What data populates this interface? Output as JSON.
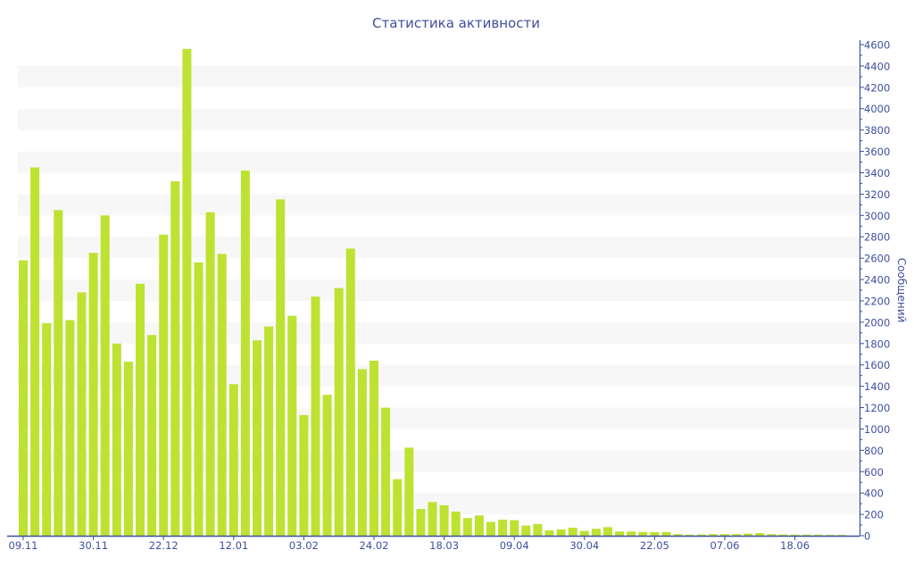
{
  "colors": {
    "bar": "#bde232",
    "axis": "#3e4f9e",
    "text": "#3e4f9e",
    "band": "#f7f7f7"
  },
  "chart_data": {
    "type": "bar",
    "title": "Статистика активности",
    "xlabel": "",
    "ylabel": "Сообщений",
    "ylim": [
      0,
      4600
    ],
    "y_ticks": [
      0,
      200,
      400,
      600,
      800,
      1000,
      1200,
      1400,
      1600,
      1800,
      2000,
      2200,
      2400,
      2600,
      2800,
      3000,
      3200,
      3400,
      3600,
      3800,
      4000,
      4200,
      4400,
      4600
    ],
    "y_axis_side": "right",
    "x_tick_labels": [
      "09.11",
      "30.11",
      "22.12",
      "12.01",
      "03.02",
      "24.02",
      "18.03",
      "09.04",
      "30.04",
      "22.05",
      "07.06",
      "18.06"
    ],
    "x_tick_every": 6,
    "grid": "alternating bands",
    "values": [
      2580,
      3450,
      1990,
      3050,
      2020,
      2280,
      2650,
      3000,
      1800,
      1630,
      2360,
      1880,
      2820,
      3320,
      4560,
      2560,
      3030,
      2640,
      1420,
      3420,
      1830,
      1960,
      3150,
      2060,
      1130,
      2240,
      1320,
      2320,
      2690,
      1560,
      1640,
      1200,
      530,
      825,
      250,
      315,
      285,
      225,
      165,
      190,
      130,
      150,
      145,
      95,
      110,
      50,
      60,
      75,
      45,
      65,
      80,
      40,
      40,
      35,
      35,
      35,
      15,
      10,
      12,
      15,
      15,
      15,
      20,
      25,
      15,
      12,
      10,
      10,
      10,
      8,
      8
    ]
  }
}
